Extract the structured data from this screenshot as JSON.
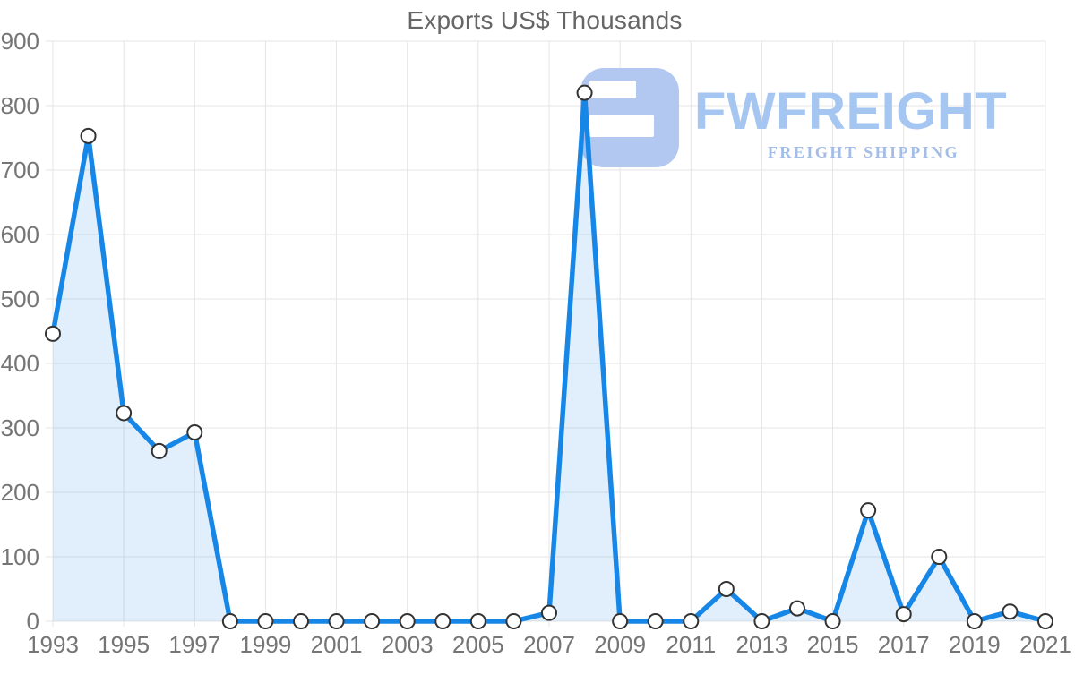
{
  "logo": {
    "brand": "FWFREIGHT",
    "tagline": "FREIGHT SHIPPING",
    "icon_color": "#b2c8f1",
    "brand_color": "#a6c6f2",
    "tagline_color": "#a3bce8"
  },
  "chart_data": {
    "type": "area",
    "title": "Exports US$ Thousands",
    "x": [
      1993,
      1994,
      1995,
      1996,
      1997,
      1998,
      1999,
      2000,
      2001,
      2002,
      2003,
      2004,
      2005,
      2006,
      2007,
      2008,
      2009,
      2010,
      2011,
      2012,
      2013,
      2014,
      2015,
      2016,
      2017,
      2018,
      2019,
      2020,
      2021
    ],
    "values": [
      446,
      753,
      323,
      264,
      293,
      0,
      0,
      0,
      0,
      0,
      0,
      0,
      0,
      0,
      13,
      820,
      0,
      0,
      0,
      50,
      0,
      20,
      0,
      172,
      11,
      100,
      0,
      15,
      0
    ],
    "ylim": [
      0,
      900
    ],
    "y_ticks": [
      0,
      100,
      200,
      300,
      400,
      500,
      600,
      700,
      800,
      900
    ],
    "x_tick_years": [
      1993,
      1995,
      1997,
      1999,
      2001,
      2003,
      2005,
      2007,
      2009,
      2011,
      2013,
      2015,
      2017,
      2019,
      2021
    ],
    "grid": true,
    "legend": "none",
    "line_color": "#1787e7",
    "fill_color": "rgba(23,135,231,0.13)",
    "marker_fill": "#ffffff",
    "marker_stroke": "#333333",
    "grid_color": "#e5e5e5",
    "axis_label_color": "#757575",
    "title_color": "#666666"
  }
}
